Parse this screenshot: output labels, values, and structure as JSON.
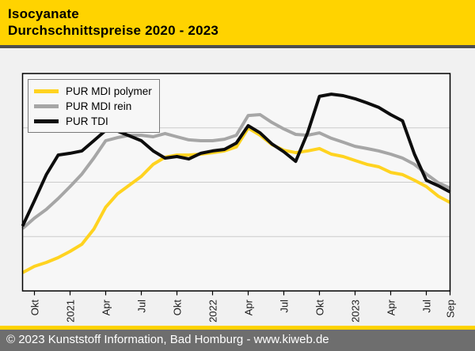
{
  "header": {
    "title_line1": "Isocyanate",
    "title_line2": "Durchschnittspreise 2020 - 2023"
  },
  "footer": {
    "text": "© 2023 Kunststoff Information, Bad Homburg - www.kiweb.de"
  },
  "colors": {
    "header_bg": "#FFD300",
    "header_text": "#000000",
    "page_bg": "#F1F1F1",
    "plot_bg": "#F7F7F7",
    "plot_border": "#000000",
    "gridline": "#CCCCCC",
    "axis_label": "#1A1A1A",
    "separator_dark": "#4D4D4D",
    "separator_yellow": "#FFD300",
    "footer_bg": "#6E6E6E",
    "footer_text": "#FFFFFF"
  },
  "chart_data": {
    "type": "line",
    "title": "Isocyanate Durchschnittspreise 2020 - 2023",
    "xlabel": "",
    "ylabel": "",
    "y_axis_labels_visible": false,
    "y_scale_note": "No price values are printed on the chart; series values below are relative levels in percent of plot height (0 = bottom axis, 100 = top frame).",
    "ylim": [
      0,
      100
    ],
    "gridlines_pct": [
      25,
      50,
      75
    ],
    "legend_position": "top-left",
    "x": [
      "Sep 2020",
      "Okt 2020",
      "Nov 2020",
      "Dez 2020",
      "Jan 2021",
      "Feb 2021",
      "Mär 2021",
      "Apr 2021",
      "Mai 2021",
      "Jun 2021",
      "Jul 2021",
      "Aug 2021",
      "Sep 2021",
      "Okt 2021",
      "Nov 2021",
      "Dez 2021",
      "Jan 2022",
      "Feb 2022",
      "Mär 2022",
      "Apr 2022",
      "Mai 2022",
      "Jun 2022",
      "Jul 2022",
      "Aug 2022",
      "Sep 2022",
      "Okt 2022",
      "Nov 2022",
      "Dez 2022",
      "Jan 2023",
      "Feb 2023",
      "Mär 2023",
      "Apr 2023",
      "Mai 2023",
      "Jun 2023",
      "Jul 2023",
      "Aug 2023",
      "Sep 2023"
    ],
    "x_ticks": [
      {
        "label": "Okt",
        "index": 1
      },
      {
        "label": "2021",
        "index": 4
      },
      {
        "label": "Apr",
        "index": 7
      },
      {
        "label": "Jul",
        "index": 10
      },
      {
        "label": "Okt",
        "index": 13
      },
      {
        "label": "2022",
        "index": 16
      },
      {
        "label": "Apr",
        "index": 19
      },
      {
        "label": "Jul",
        "index": 22
      },
      {
        "label": "Okt",
        "index": 25
      },
      {
        "label": "2023",
        "index": 28
      },
      {
        "label": "Apr",
        "index": 31
      },
      {
        "label": "Jul",
        "index": 34
      },
      {
        "label": "Sep",
        "index": 36
      }
    ],
    "series": [
      {
        "id": "pur-mdi-polymer",
        "name": "PUR MDI polymer",
        "color": "#FFD320",
        "values": [
          8.4,
          11.3,
          13.1,
          15.3,
          18.2,
          21.5,
          28.4,
          38.5,
          44.7,
          48.7,
          52.7,
          58.2,
          61.5,
          62.5,
          62.5,
          62.9,
          63.6,
          64.4,
          66.2,
          74.9,
          71.6,
          67.3,
          64.7,
          63.6,
          64.4,
          65.5,
          62.9,
          61.8,
          60.0,
          58.2,
          57.1,
          54.5,
          53.5,
          50.9,
          48.0,
          43.6,
          40.7
        ]
      },
      {
        "id": "pur-mdi-rein",
        "name": "PUR MDI rein",
        "color": "#A6A6A6",
        "values": [
          28.7,
          33.5,
          37.5,
          42.5,
          48.0,
          53.8,
          61.1,
          69.1,
          70.5,
          71.6,
          71.6,
          70.9,
          72.4,
          70.9,
          69.5,
          69.1,
          69.1,
          69.8,
          71.6,
          80.7,
          81.1,
          77.5,
          74.5,
          72.0,
          71.6,
          72.7,
          70.2,
          68.4,
          66.5,
          65.5,
          64.4,
          62.9,
          61.1,
          58.2,
          53.8,
          49.8,
          47.3
        ]
      },
      {
        "id": "pur-tdi",
        "name": "PUR TDI",
        "color": "#0D0D0D",
        "values": [
          29.8,
          41.5,
          53.5,
          62.5,
          63.3,
          64.4,
          69.1,
          73.8,
          73.5,
          71.3,
          69.1,
          64.4,
          61.1,
          61.8,
          60.7,
          63.3,
          64.4,
          65.1,
          68.0,
          76.0,
          72.7,
          67.6,
          64.0,
          59.6,
          72.7,
          89.5,
          90.5,
          89.8,
          88.4,
          86.5,
          84.4,
          81.1,
          78.2,
          62.9,
          50.9,
          48.4,
          45.5
        ]
      }
    ]
  }
}
